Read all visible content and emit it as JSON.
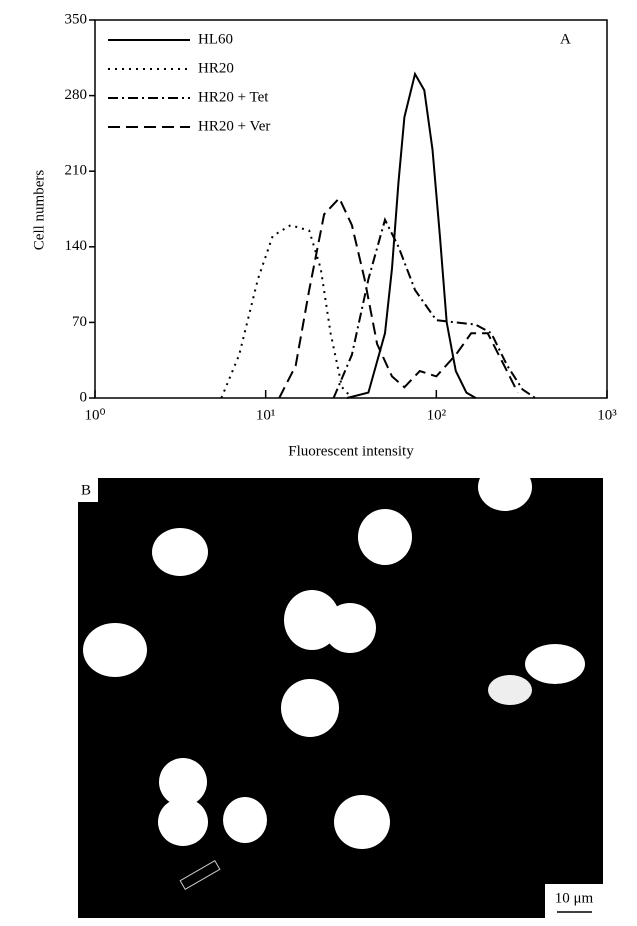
{
  "chart_data": {
    "type": "line",
    "annotation": "A",
    "x_label": "Fluorescent intensity",
    "y_label": "Cell numbers",
    "xscale": "log",
    "xlim": [
      1,
      1000
    ],
    "xticks": [
      {
        "value": 1,
        "label": "10⁰"
      },
      {
        "value": 10,
        "label": "10¹"
      },
      {
        "value": 100,
        "label": "10²"
      },
      {
        "value": 1000,
        "label": "10³"
      }
    ],
    "ylim": [
      0,
      350
    ],
    "yticks": [
      0,
      70,
      140,
      210,
      280,
      350
    ],
    "grid": false,
    "legend": "upper-left",
    "series": [
      {
        "name": "HL60",
        "color": "#000000",
        "style": "solid",
        "x": [
          30,
          40,
          50,
          55,
          60,
          65,
          75,
          85,
          95,
          105,
          115,
          130,
          150,
          170
        ],
        "values": [
          0,
          5,
          60,
          120,
          200,
          260,
          300,
          285,
          230,
          150,
          70,
          25,
          5,
          0
        ]
      },
      {
        "name": "HR20",
        "color": "#000000",
        "style": "dotted",
        "x": [
          5.5,
          7,
          9,
          11,
          14,
          18,
          21,
          24,
          28,
          32
        ],
        "values": [
          0,
          40,
          110,
          150,
          160,
          155,
          120,
          60,
          10,
          0
        ]
      },
      {
        "name": "HR20 + Tet",
        "color": "#000000",
        "style": "dashdot",
        "x": [
          25,
          32,
          40,
          50,
          60,
          75,
          100,
          130,
          170,
          210,
          260,
          320,
          380
        ],
        "values": [
          0,
          40,
          110,
          165,
          140,
          100,
          72,
          70,
          68,
          60,
          30,
          8,
          0
        ]
      },
      {
        "name": "HR20 + Ver",
        "color": "#000000",
        "style": "dashed",
        "x": [
          12,
          15,
          18,
          22,
          27,
          32,
          38,
          45,
          55,
          65,
          80,
          100,
          130,
          160,
          200,
          250,
          300
        ],
        "values": [
          0,
          30,
          100,
          170,
          185,
          160,
          110,
          50,
          20,
          10,
          25,
          20,
          40,
          60,
          60,
          30,
          5
        ]
      }
    ]
  },
  "image": {
    "label": "B",
    "scale_bar": "10 μm"
  }
}
